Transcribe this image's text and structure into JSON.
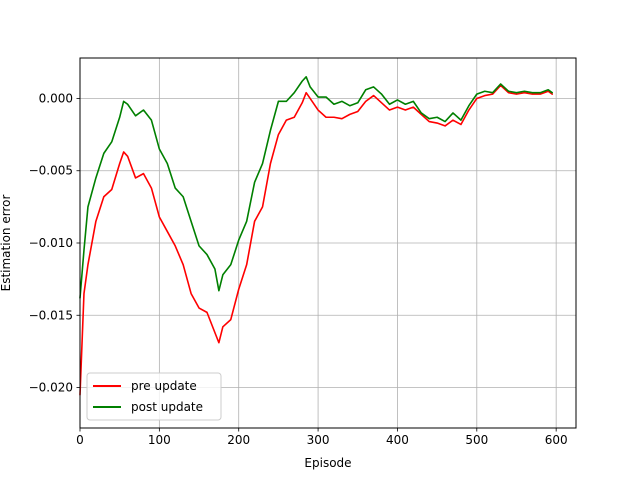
{
  "chart_data": {
    "type": "line",
    "title": "",
    "xlabel": "Episode",
    "ylabel": "Estimation error",
    "xlim": [
      0,
      625
    ],
    "ylim": [
      -0.0228,
      0.0028
    ],
    "x_ticks": [
      0,
      100,
      200,
      300,
      400,
      500,
      600
    ],
    "x_tick_labels": [
      "0",
      "100",
      "200",
      "300",
      "400",
      "500",
      "600"
    ],
    "y_ticks": [
      -0.02,
      -0.015,
      -0.01,
      -0.005,
      0.0
    ],
    "y_tick_labels": [
      "−0.020",
      "−0.015",
      "−0.010",
      "−0.005",
      "0.000"
    ],
    "grid": true,
    "legend_position": "lower-left",
    "x": [
      0,
      5,
      10,
      20,
      30,
      40,
      50,
      55,
      60,
      70,
      80,
      90,
      100,
      110,
      120,
      130,
      140,
      150,
      160,
      170,
      175,
      180,
      190,
      200,
      210,
      220,
      230,
      240,
      250,
      260,
      270,
      280,
      285,
      290,
      300,
      310,
      320,
      330,
      340,
      350,
      360,
      370,
      380,
      390,
      400,
      410,
      420,
      430,
      440,
      450,
      460,
      470,
      480,
      490,
      500,
      510,
      520,
      530,
      540,
      550,
      560,
      570,
      580,
      590,
      595
    ],
    "series": [
      {
        "name": "pre update",
        "color": "#ff0000",
        "values": [
          -0.0205,
          -0.0135,
          -0.0115,
          -0.0085,
          -0.0068,
          -0.0063,
          -0.0045,
          -0.0037,
          -0.004,
          -0.0055,
          -0.0052,
          -0.0062,
          -0.0082,
          -0.0092,
          -0.0102,
          -0.0115,
          -0.0135,
          -0.0145,
          -0.0148,
          -0.0162,
          -0.0169,
          -0.0158,
          -0.0153,
          -0.0132,
          -0.0115,
          -0.0085,
          -0.0075,
          -0.0045,
          -0.0025,
          -0.0015,
          -0.0013,
          -0.0003,
          0.0004,
          0.0,
          -0.0008,
          -0.0013,
          -0.0013,
          -0.0014,
          -0.0011,
          -0.0009,
          -0.0002,
          0.0002,
          -0.0003,
          -0.0008,
          -0.0006,
          -0.0008,
          -0.0006,
          -0.0011,
          -0.0016,
          -0.0017,
          -0.0019,
          -0.0015,
          -0.0018,
          -0.0008,
          0.0,
          0.0002,
          0.0003,
          0.0009,
          0.0004,
          0.0003,
          0.0004,
          0.0003,
          0.0003,
          0.0005,
          0.0003
        ]
      },
      {
        "name": "post update",
        "color": "#008000",
        "values": [
          -0.0138,
          -0.0105,
          -0.0075,
          -0.0055,
          -0.0038,
          -0.003,
          -0.0013,
          -0.0002,
          -0.0004,
          -0.0012,
          -0.0008,
          -0.0015,
          -0.0035,
          -0.0045,
          -0.0062,
          -0.0068,
          -0.0085,
          -0.0102,
          -0.0108,
          -0.0118,
          -0.0133,
          -0.0122,
          -0.0115,
          -0.0098,
          -0.0085,
          -0.0058,
          -0.0045,
          -0.0022,
          -0.0002,
          -0.0002,
          0.0004,
          0.0012,
          0.0015,
          0.0008,
          0.0001,
          0.0001,
          -0.0004,
          -0.0002,
          -0.0005,
          -0.0003,
          0.0006,
          0.0008,
          0.0003,
          -0.0004,
          -0.0001,
          -0.0004,
          -0.0002,
          -0.001,
          -0.0014,
          -0.0013,
          -0.0016,
          -0.001,
          -0.0015,
          -0.0005,
          0.0003,
          0.0005,
          0.0004,
          0.001,
          0.0005,
          0.0004,
          0.0005,
          0.0004,
          0.0004,
          0.0006,
          0.0004
        ]
      }
    ]
  }
}
